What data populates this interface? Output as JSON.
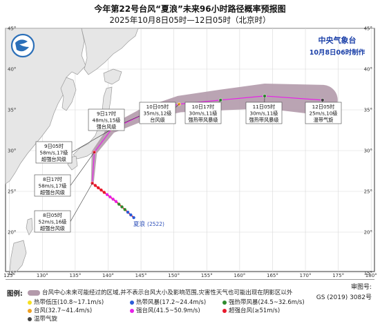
{
  "header": {
    "title": "今年第22号台风“夏浪”未来96小时路径概率预报图",
    "subtitle": "2025年10月8日05时—12日05时（北京时）"
  },
  "agency": {
    "name": "中央气象台",
    "issued": "10月8日06时制作"
  },
  "typhoon_label": "夏浪",
  "typhoon_code": "(2522)",
  "lon_ticks": [
    "125°",
    "130°",
    "135°",
    "140°",
    "145°",
    "150°",
    "155°",
    "160°",
    "165°",
    "170°",
    "175°",
    "180°"
  ],
  "lat_ticks": [
    "15°",
    "20°",
    "25°",
    "30°",
    "35°",
    "40°",
    "45°"
  ],
  "forecast_points": [
    {
      "time": "8日05时",
      "wind": "52m/s,16级",
      "level": "超强台风级",
      "lon": 137.6,
      "lat": 26.0,
      "color": "#e8182b"
    },
    {
      "time": "8日17时",
      "wind": "58m/s,17级",
      "level": "超强台风级",
      "lon": 137.9,
      "lat": 29.8,
      "color": "#e8182b"
    },
    {
      "time": "9日05时",
      "wind": "58m/s,17级",
      "level": "超强台风级",
      "lon": 140.5,
      "lat": 32.6,
      "color": "#e8182b"
    },
    {
      "time": "9日17时",
      "wind": "48m/s,15级",
      "level": "强台风级",
      "lon": 145.5,
      "lat": 34.5,
      "color": "#e820e8"
    },
    {
      "time": "10日05时",
      "wind": "35m/s,12级",
      "level": "台风级",
      "lon": 150.8,
      "lat": 35.7,
      "color": "#f0a020"
    },
    {
      "time": "10日17时",
      "wind": "30m/s,11级",
      "level": "强热带风暴级",
      "lon": 157.1,
      "lat": 36.2,
      "color": "#2e8b2e"
    },
    {
      "time": "11日05时",
      "wind": "30m/s,11级",
      "level": "强热带风暴级",
      "lon": 163.8,
      "lat": 36.7,
      "color": "#2e8b2e"
    },
    {
      "time": "12日05时",
      "wind": "25m/s,10级",
      "level": "温带气旋",
      "lon": 172.6,
      "lat": 36.2,
      "color": "#444444"
    }
  ],
  "legend": {
    "heading": "图例:",
    "cone": "台风中心未来可能经过的区域,并不表示台风大小及影响范围,灾害性天气也可能出现在阴影区以外",
    "items": [
      {
        "label": "热带低压(10.8~17.1m/s)",
        "color": "#f5e020"
      },
      {
        "label": "热带风暴(17.2~24.4m/s)",
        "color": "#2a5cd8"
      },
      {
        "label": "强热带风暴(24.5~32.6m/s)",
        "color": "#2e8b2e"
      },
      {
        "label": "台风(32.7~41.4m/s)",
        "color": "#f0a020"
      },
      {
        "label": "强台风(41.5~50.9m/s)",
        "color": "#e820e8"
      },
      {
        "label": "超强台风(≥51m/s)",
        "color": "#e8182b"
      },
      {
        "label": "温带气旋",
        "color": "#444444"
      }
    ],
    "audit": "审图号:",
    "gs": "GS (2019) 3082号"
  },
  "colors": {
    "sea": "#ffffff",
    "land": "#e6e6e6",
    "border": "#888888",
    "cone": "#b39aab",
    "track": "#e820e8"
  }
}
